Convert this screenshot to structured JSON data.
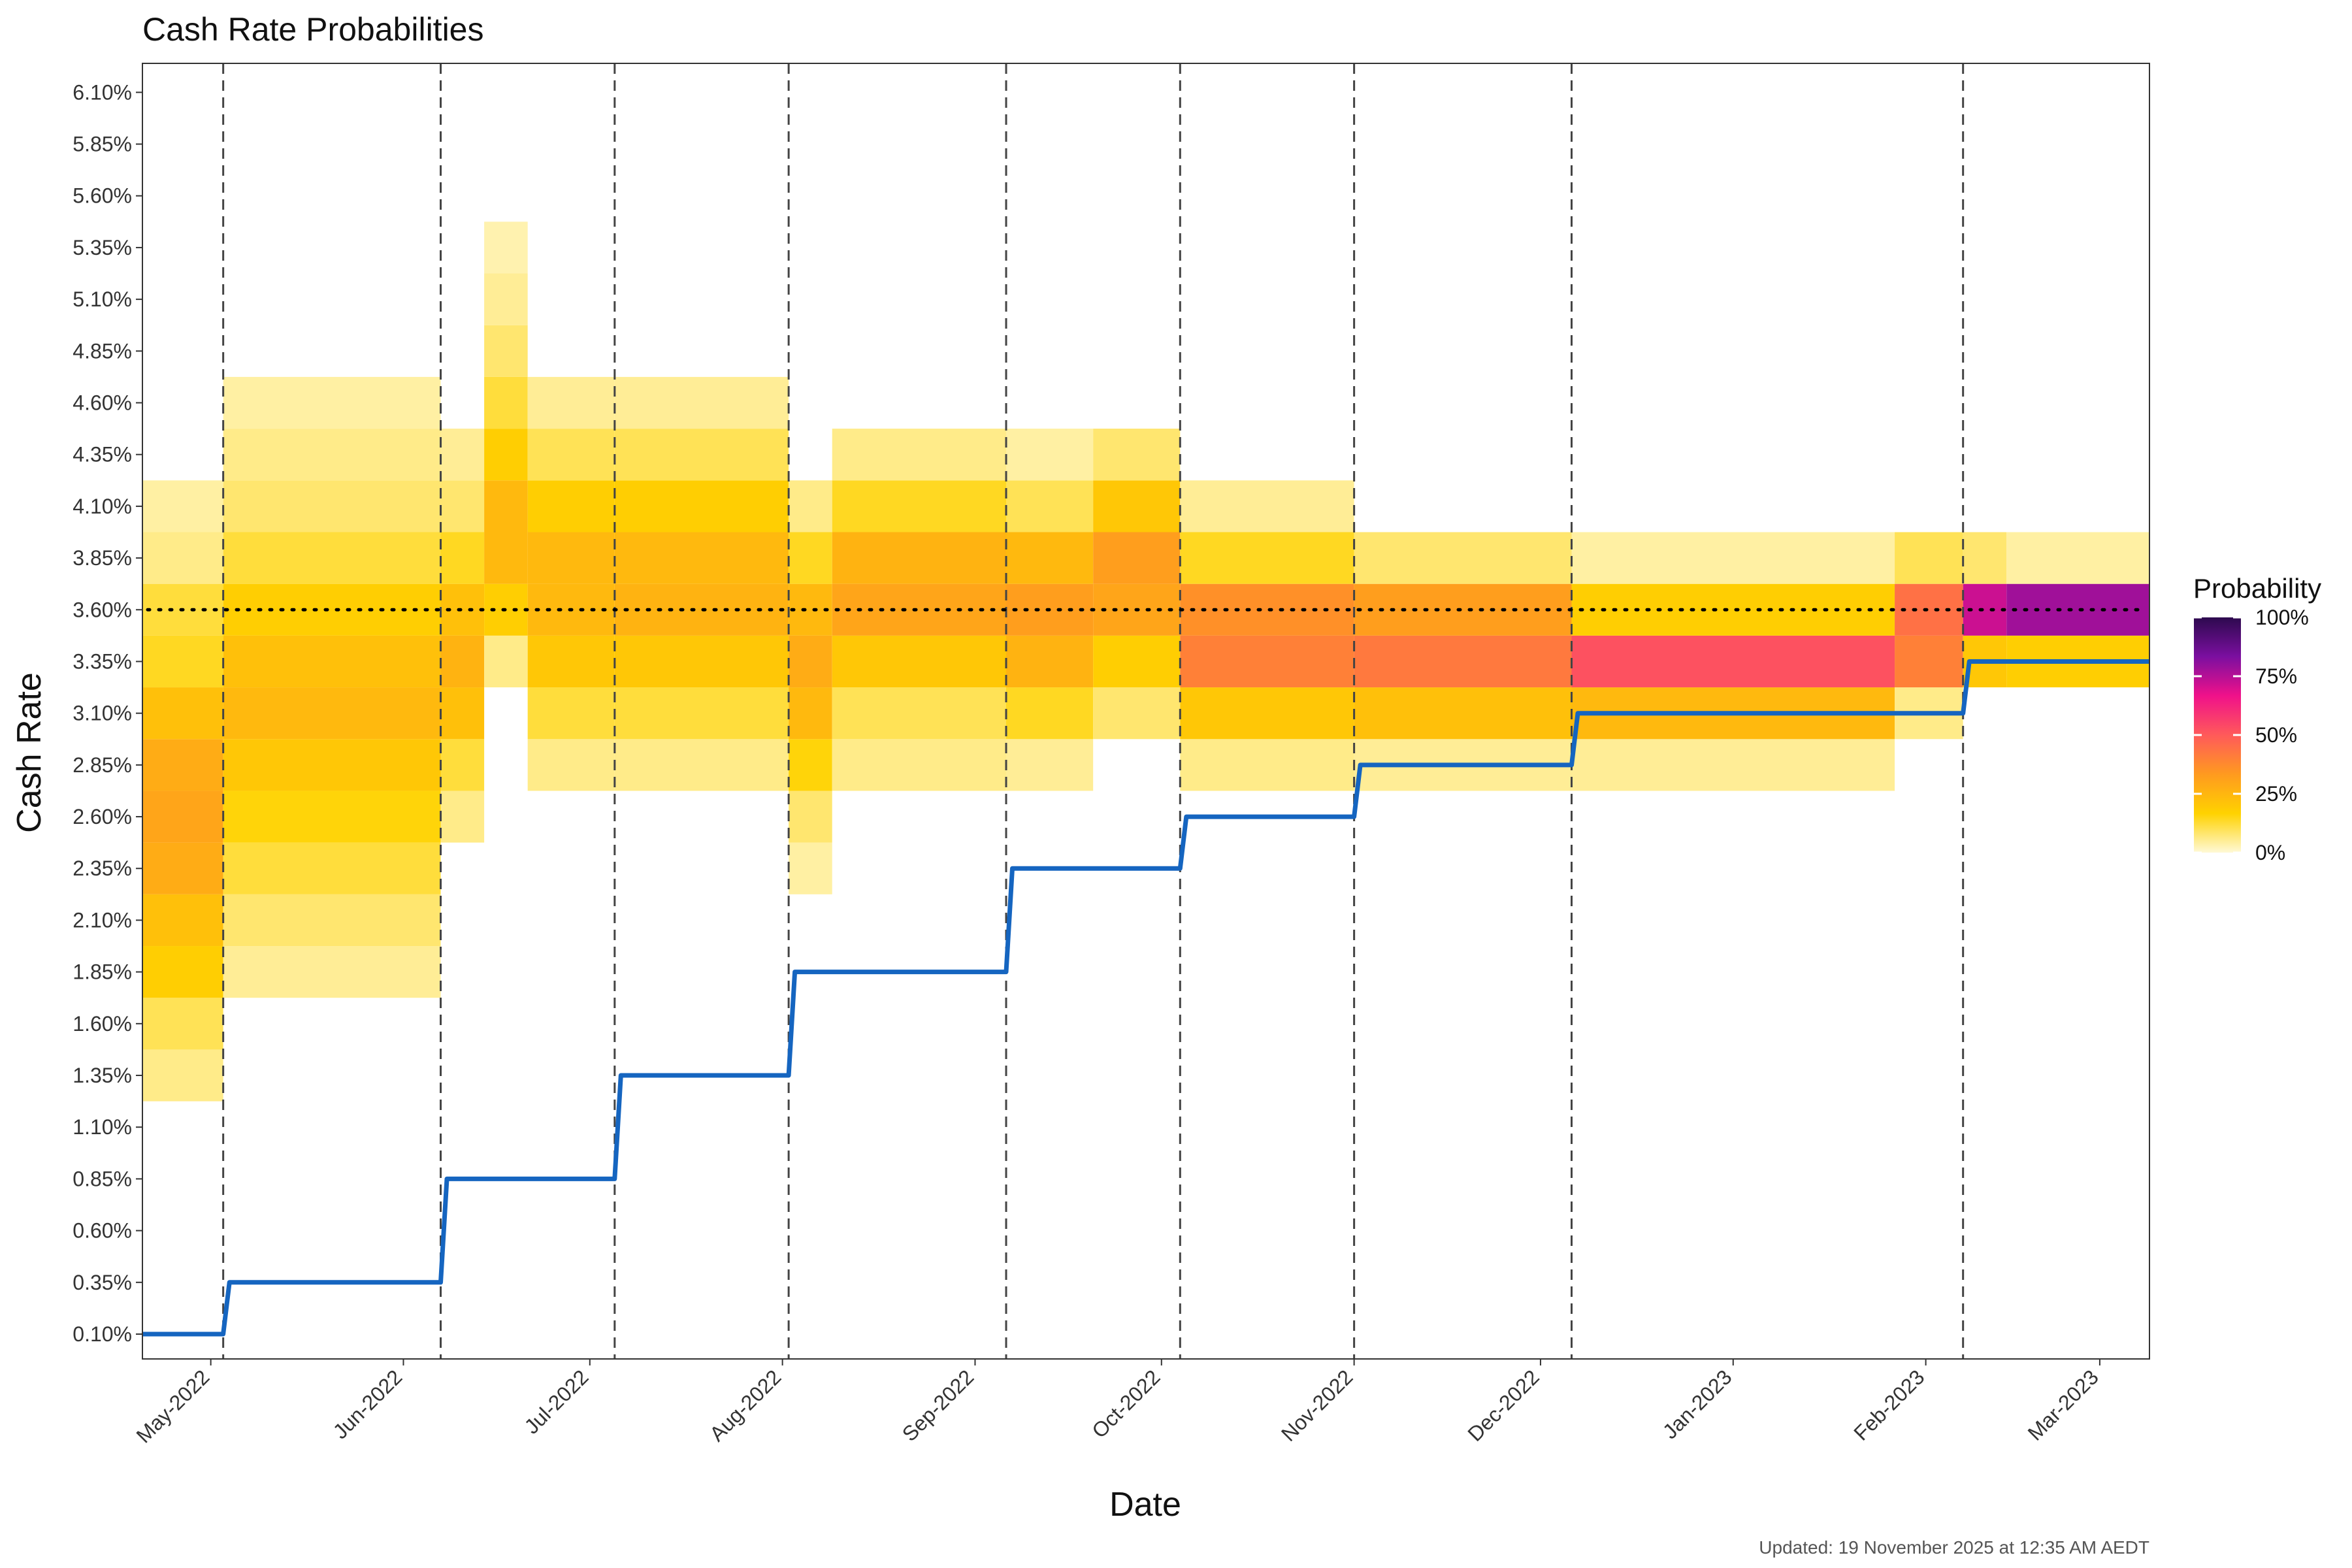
{
  "chart_data": {
    "type": "heatmap",
    "title": "Cash Rate Probabilities",
    "xlabel": "Date",
    "ylabel": "Cash Rate",
    "caption": "Updated: 19 November 2025 at 12:35 AM AEDT",
    "x_range": [
      "2022-04-20",
      "2023-03-09"
    ],
    "x_ticks": [
      {
        "date": "2022-05-01",
        "label": "May-2022"
      },
      {
        "date": "2022-06-01",
        "label": "Jun-2022"
      },
      {
        "date": "2022-07-01",
        "label": "Jul-2022"
      },
      {
        "date": "2022-08-01",
        "label": "Aug-2022"
      },
      {
        "date": "2022-09-01",
        "label": "Sep-2022"
      },
      {
        "date": "2022-10-01",
        "label": "Oct-2022"
      },
      {
        "date": "2022-11-01",
        "label": "Nov-2022"
      },
      {
        "date": "2022-12-01",
        "label": "Dec-2022"
      },
      {
        "date": "2023-01-01",
        "label": "Jan-2023"
      },
      {
        "date": "2023-02-01",
        "label": "Feb-2023"
      },
      {
        "date": "2023-03-01",
        "label": "Mar-2023"
      }
    ],
    "y_ticks": [
      "0.10%",
      "0.35%",
      "0.60%",
      "0.85%",
      "1.10%",
      "1.35%",
      "1.60%",
      "1.85%",
      "2.10%",
      "2.35%",
      "2.60%",
      "2.85%",
      "3.10%",
      "3.35%",
      "3.60%",
      "3.85%",
      "4.10%",
      "4.35%",
      "4.60%",
      "4.85%",
      "5.10%",
      "5.35%",
      "5.60%",
      "5.85%",
      "6.10%"
    ],
    "y_tick_values": [
      0.1,
      0.35,
      0.6,
      0.85,
      1.1,
      1.35,
      1.6,
      1.85,
      2.1,
      2.35,
      2.6,
      2.85,
      3.1,
      3.35,
      3.6,
      3.85,
      4.1,
      4.35,
      4.6,
      4.85,
      5.1,
      5.35,
      5.6,
      5.85,
      6.1
    ],
    "ylim": [
      -0.02,
      6.24
    ],
    "meeting_dates": [
      "2022-05-03",
      "2022-06-07",
      "2022-07-05",
      "2022-08-02",
      "2022-09-06",
      "2022-10-04",
      "2022-11-01",
      "2022-12-06",
      "2023-02-07"
    ],
    "reference_rate": 3.6,
    "cash_rate_series": {
      "name": "Cash Rate",
      "color": "#1565c0",
      "points": [
        {
          "date": "2022-04-20",
          "rate": 0.1
        },
        {
          "date": "2022-05-03",
          "rate": 0.1
        },
        {
          "date": "2022-05-04",
          "rate": 0.35
        },
        {
          "date": "2022-06-07",
          "rate": 0.35
        },
        {
          "date": "2022-06-08",
          "rate": 0.85
        },
        {
          "date": "2022-07-05",
          "rate": 0.85
        },
        {
          "date": "2022-07-06",
          "rate": 1.35
        },
        {
          "date": "2022-08-02",
          "rate": 1.35
        },
        {
          "date": "2022-08-03",
          "rate": 1.85
        },
        {
          "date": "2022-09-06",
          "rate": 1.85
        },
        {
          "date": "2022-09-07",
          "rate": 2.35
        },
        {
          "date": "2022-10-04",
          "rate": 2.35
        },
        {
          "date": "2022-10-05",
          "rate": 2.6
        },
        {
          "date": "2022-11-01",
          "rate": 2.6
        },
        {
          "date": "2022-11-02",
          "rate": 2.85
        },
        {
          "date": "2022-12-06",
          "rate": 2.85
        },
        {
          "date": "2022-12-07",
          "rate": 3.1
        },
        {
          "date": "2023-02-07",
          "rate": 3.1
        },
        {
          "date": "2023-02-08",
          "rate": 3.35
        },
        {
          "date": "2023-03-09",
          "rate": 3.35
        }
      ]
    },
    "heat_blocks": [
      {
        "start": "2022-04-20",
        "end": "2022-05-03",
        "cells": [
          [
            1.35,
            0.06
          ],
          [
            1.6,
            0.1
          ],
          [
            1.85,
            0.18
          ],
          [
            2.1,
            0.22
          ],
          [
            2.35,
            0.28
          ],
          [
            2.6,
            0.3
          ],
          [
            2.85,
            0.28
          ],
          [
            3.1,
            0.22
          ],
          [
            3.35,
            0.14
          ],
          [
            3.6,
            0.12
          ],
          [
            3.85,
            0.06
          ],
          [
            4.1,
            0.04
          ]
        ]
      },
      {
        "start": "2022-05-03",
        "end": "2022-06-07",
        "cells": [
          [
            1.85,
            0.05
          ],
          [
            2.1,
            0.08
          ],
          [
            2.35,
            0.12
          ],
          [
            2.6,
            0.16
          ],
          [
            2.85,
            0.2
          ],
          [
            3.1,
            0.24
          ],
          [
            3.35,
            0.22
          ],
          [
            3.6,
            0.18
          ],
          [
            3.85,
            0.12
          ],
          [
            4.1,
            0.08
          ],
          [
            4.35,
            0.06
          ],
          [
            4.6,
            0.04
          ]
        ]
      },
      {
        "start": "2022-06-07",
        "end": "2022-06-14",
        "cells": [
          [
            2.6,
            0.06
          ],
          [
            2.85,
            0.12
          ],
          [
            3.1,
            0.22
          ],
          [
            3.35,
            0.26
          ],
          [
            3.6,
            0.22
          ],
          [
            3.85,
            0.14
          ],
          [
            4.1,
            0.08
          ],
          [
            4.35,
            0.05
          ]
        ]
      },
      {
        "start": "2022-06-14",
        "end": "2022-06-21",
        "cells": [
          [
            3.35,
            0.06
          ],
          [
            3.6,
            0.18
          ],
          [
            3.85,
            0.24
          ],
          [
            4.1,
            0.24
          ],
          [
            4.35,
            0.18
          ],
          [
            4.6,
            0.12
          ],
          [
            4.85,
            0.08
          ],
          [
            5.1,
            0.05
          ],
          [
            5.35,
            0.03
          ]
        ]
      },
      {
        "start": "2022-06-21",
        "end": "2022-07-05",
        "cells": [
          [
            2.85,
            0.06
          ],
          [
            3.1,
            0.12
          ],
          [
            3.35,
            0.2
          ],
          [
            3.6,
            0.24
          ],
          [
            3.85,
            0.24
          ],
          [
            4.1,
            0.18
          ],
          [
            4.35,
            0.1
          ],
          [
            4.6,
            0.05
          ]
        ]
      },
      {
        "start": "2022-07-05",
        "end": "2022-08-02",
        "cells": [
          [
            2.85,
            0.06
          ],
          [
            3.1,
            0.12
          ],
          [
            3.35,
            0.2
          ],
          [
            3.6,
            0.26
          ],
          [
            3.85,
            0.24
          ],
          [
            4.1,
            0.18
          ],
          [
            4.35,
            0.1
          ],
          [
            4.6,
            0.05
          ]
        ]
      },
      {
        "start": "2022-08-02",
        "end": "2022-08-09",
        "cells": [
          [
            2.35,
            0.04
          ],
          [
            2.6,
            0.08
          ],
          [
            2.85,
            0.16
          ],
          [
            3.1,
            0.24
          ],
          [
            3.35,
            0.28
          ],
          [
            3.6,
            0.24
          ],
          [
            3.85,
            0.14
          ],
          [
            4.1,
            0.06
          ]
        ]
      },
      {
        "start": "2022-08-09",
        "end": "2022-09-06",
        "cells": [
          [
            2.85,
            0.06
          ],
          [
            3.1,
            0.1
          ],
          [
            3.35,
            0.2
          ],
          [
            3.6,
            0.3
          ],
          [
            3.85,
            0.26
          ],
          [
            4.1,
            0.14
          ],
          [
            4.35,
            0.06
          ]
        ]
      },
      {
        "start": "2022-09-06",
        "end": "2022-09-20",
        "cells": [
          [
            2.85,
            0.05
          ],
          [
            3.1,
            0.14
          ],
          [
            3.35,
            0.26
          ],
          [
            3.6,
            0.32
          ],
          [
            3.85,
            0.24
          ],
          [
            4.1,
            0.1
          ],
          [
            4.35,
            0.04
          ]
        ]
      },
      {
        "start": "2022-09-20",
        "end": "2022-10-04",
        "cells": [
          [
            3.1,
            0.08
          ],
          [
            3.35,
            0.18
          ],
          [
            3.6,
            0.3
          ],
          [
            3.85,
            0.32
          ],
          [
            4.1,
            0.2
          ],
          [
            4.35,
            0.08
          ]
        ]
      },
      {
        "start": "2022-10-04",
        "end": "2022-11-01",
        "cells": [
          [
            2.85,
            0.06
          ],
          [
            3.1,
            0.2
          ],
          [
            3.35,
            0.4
          ],
          [
            3.6,
            0.36
          ],
          [
            3.85,
            0.14
          ],
          [
            4.1,
            0.05
          ]
        ]
      },
      {
        "start": "2022-11-01",
        "end": "2022-12-06",
        "cells": [
          [
            2.85,
            0.05
          ],
          [
            3.1,
            0.22
          ],
          [
            3.35,
            0.42
          ],
          [
            3.6,
            0.32
          ],
          [
            3.85,
            0.08
          ]
        ]
      },
      {
        "start": "2022-12-06",
        "end": "2023-01-27",
        "cells": [
          [
            2.85,
            0.05
          ],
          [
            3.1,
            0.24
          ],
          [
            3.35,
            0.52
          ],
          [
            3.6,
            0.18
          ],
          [
            3.85,
            0.04
          ]
        ]
      },
      {
        "start": "2023-01-27",
        "end": "2023-02-07",
        "cells": [
          [
            3.1,
            0.06
          ],
          [
            3.35,
            0.4
          ],
          [
            3.6,
            0.44
          ],
          [
            3.85,
            0.1
          ]
        ]
      },
      {
        "start": "2023-02-07",
        "end": "2023-02-14",
        "cells": [
          [
            3.35,
            0.2
          ],
          [
            3.6,
            0.72
          ],
          [
            3.85,
            0.08
          ]
        ]
      },
      {
        "start": "2023-02-14",
        "end": "2023-03-09",
        "cells": [
          [
            3.35,
            0.18
          ],
          [
            3.6,
            0.78
          ],
          [
            3.85,
            0.04
          ]
        ]
      }
    ],
    "legend": {
      "title": "Probability",
      "labels": [
        "0%",
        "25%",
        "50%",
        "75%",
        "100%"
      ],
      "stops": [
        0,
        0.25,
        0.5,
        0.75,
        1.0
      ],
      "placement": "right"
    },
    "colorscale": [
      "#fff9d6",
      "#ffd200",
      "#ff9a1f",
      "#ff5a5a",
      "#f0118a",
      "#7b0fa0",
      "#2d0a4e"
    ]
  }
}
